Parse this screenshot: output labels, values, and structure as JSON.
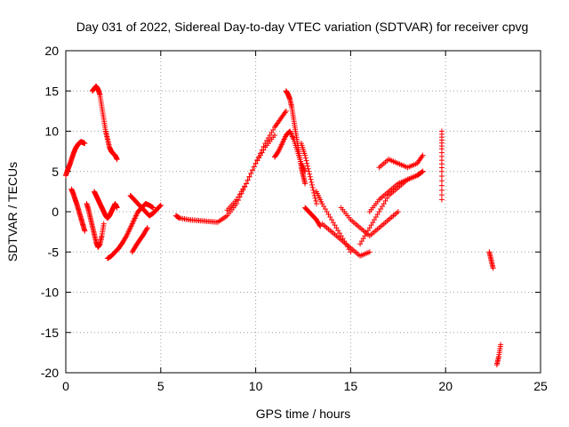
{
  "chart_data": {
    "type": "scatter",
    "title": "Day 031 of 2022, Sidereal Day-to-day VTEC variation (SDTVAR) for receiver cpvg",
    "xlabel": "GPS time / hours",
    "ylabel": "SDTVAR / TECUs",
    "xlim": [
      0,
      25
    ],
    "ylim": [
      -20,
      20
    ],
    "xticks": [
      0,
      5,
      10,
      15,
      20,
      25
    ],
    "yticks": [
      -20,
      -15,
      -10,
      -5,
      0,
      5,
      10,
      15,
      20
    ],
    "xtick_labels": [
      "0",
      "5",
      "10",
      "15",
      "20",
      "25"
    ],
    "ytick_labels": [
      "-20",
      "-15",
      "-10",
      "-5",
      "0",
      "5",
      "10",
      "15",
      "20"
    ],
    "grid": true,
    "marker": "+",
    "color": "#ff0000",
    "series": [
      {
        "name": "s1",
        "x": [
          0.0,
          0.1,
          0.2,
          0.3,
          0.4,
          0.5,
          0.6,
          0.7,
          0.8,
          0.9,
          1.0
        ],
        "y": [
          4.5,
          5.2,
          5.8,
          6.5,
          7.2,
          7.8,
          8.2,
          8.5,
          8.7,
          8.6,
          8.5
        ]
      },
      {
        "name": "s2",
        "x": [
          0.3,
          0.4,
          0.5,
          0.6,
          0.7,
          0.8,
          0.9,
          1.0
        ],
        "y": [
          2.8,
          2.2,
          1.5,
          0.8,
          0.0,
          -0.8,
          -1.6,
          -2.4
        ]
      },
      {
        "name": "s3",
        "x": [
          1.4,
          1.5,
          1.6,
          1.7,
          1.8,
          1.9,
          2.0,
          2.1,
          2.2,
          2.3,
          2.4,
          2.5,
          2.6,
          2.7
        ],
        "y": [
          15.0,
          15.3,
          15.6,
          15.2,
          14.5,
          13.0,
          11.5,
          10.0,
          9.0,
          8.0,
          7.5,
          7.2,
          7.0,
          6.5
        ]
      },
      {
        "name": "s4",
        "x": [
          1.1,
          1.2,
          1.3,
          1.4,
          1.5,
          1.6,
          1.7,
          1.8,
          1.9,
          2.0
        ],
        "y": [
          1.0,
          0.2,
          -0.8,
          -1.8,
          -2.8,
          -3.8,
          -4.4,
          -4.0,
          -3.0,
          -1.5
        ]
      },
      {
        "name": "s5",
        "x": [
          1.5,
          1.6,
          1.7,
          1.8,
          1.9,
          2.0,
          2.1,
          2.2,
          2.3,
          2.4,
          2.5,
          2.6,
          2.7
        ],
        "y": [
          2.5,
          2.0,
          1.5,
          1.0,
          0.5,
          0.0,
          -0.5,
          -0.8,
          -0.5,
          0.0,
          0.5,
          1.0,
          0.5
        ]
      },
      {
        "name": "s6",
        "x": [
          2.2,
          2.4,
          2.6,
          2.8,
          3.0,
          3.2,
          3.4,
          3.6,
          3.8,
          4.0,
          4.2,
          4.4,
          4.6
        ],
        "y": [
          -5.8,
          -5.5,
          -5.0,
          -4.5,
          -3.8,
          -3.0,
          -2.0,
          -1.0,
          0.0,
          0.5,
          1.0,
          0.8,
          0.5
        ]
      },
      {
        "name": "s7",
        "x": [
          3.4,
          3.6,
          3.8,
          4.0,
          4.2,
          4.4,
          4.6,
          4.8,
          5.0
        ],
        "y": [
          2.0,
          1.5,
          1.0,
          0.5,
          0.0,
          -0.5,
          -0.2,
          0.3,
          0.8
        ]
      },
      {
        "name": "s8",
        "x": [
          3.5,
          3.7,
          3.9,
          4.1,
          4.3
        ],
        "y": [
          -5.0,
          -4.2,
          -3.5,
          -2.8,
          -2.0
        ]
      },
      {
        "name": "s9",
        "x": [
          5.8,
          6.0,
          6.5,
          7.0,
          7.5,
          8.0,
          8.5,
          9.0,
          9.5,
          10.0,
          10.5,
          11.0,
          11.3,
          11.6
        ],
        "y": [
          -0.5,
          -0.8,
          -1.0,
          -1.1,
          -1.2,
          -1.3,
          -0.5,
          1.0,
          3.5,
          6.0,
          8.5,
          10.5,
          11.5,
          12.5
        ]
      },
      {
        "name": "s10",
        "x": [
          8.5,
          9.0,
          9.5,
          10.0,
          10.5,
          11.0
        ],
        "y": [
          0.2,
          1.5,
          3.5,
          6.0,
          8.0,
          9.5
        ]
      },
      {
        "name": "s11",
        "x": [
          11.6,
          11.7,
          11.8,
          11.9,
          12.0,
          12.1,
          12.2,
          12.3,
          12.4,
          12.5,
          12.6
        ],
        "y": [
          15.0,
          14.6,
          14.0,
          13.0,
          11.5,
          10.0,
          8.5,
          7.0,
          5.5,
          4.5,
          3.5
        ]
      },
      {
        "name": "s12",
        "x": [
          11.0,
          11.2,
          11.4,
          11.6,
          11.8,
          12.0,
          12.2,
          12.4,
          12.6
        ],
        "y": [
          6.8,
          7.5,
          8.5,
          9.5,
          10.0,
          9.0,
          7.5,
          6.0,
          5.0
        ]
      },
      {
        "name": "s13",
        "x": [
          12.4,
          12.6,
          12.8,
          13.0,
          13.2
        ],
        "y": [
          8.5,
          7.0,
          5.0,
          3.0,
          1.0
        ]
      },
      {
        "name": "s14",
        "x": [
          12.6,
          12.8,
          13.0,
          13.2,
          13.4
        ],
        "y": [
          0.5,
          0.0,
          -0.5,
          -1.0,
          -1.8
        ]
      },
      {
        "name": "s15",
        "x": [
          13.2,
          13.5,
          14.0,
          14.5,
          15.0
        ],
        "y": [
          2.5,
          1.0,
          -1.0,
          -3.0,
          -5.0
        ]
      },
      {
        "name": "s16",
        "x": [
          13.5,
          14.0,
          14.5,
          15.0,
          15.5,
          16.0
        ],
        "y": [
          -1.5,
          -2.5,
          -3.5,
          -4.5,
          -5.5,
          -5.0
        ]
      },
      {
        "name": "s17",
        "x": [
          14.5,
          15.0,
          15.5,
          16.0,
          16.5,
          17.0,
          17.5
        ],
        "y": [
          0.5,
          -1.0,
          -2.0,
          -3.0,
          -2.0,
          -1.0,
          0.0
        ]
      },
      {
        "name": "s18",
        "x": [
          15.5,
          16.0,
          16.5,
          17.0,
          17.5,
          18.0,
          18.5,
          18.8
        ],
        "y": [
          -4.0,
          -2.0,
          0.0,
          2.0,
          3.0,
          4.0,
          4.5,
          5.0
        ]
      },
      {
        "name": "s19",
        "x": [
          16.0,
          16.5,
          17.0,
          17.5,
          18.0,
          18.5,
          18.8
        ],
        "y": [
          0.0,
          1.5,
          2.5,
          3.5,
          4.0,
          4.5,
          5.0
        ]
      },
      {
        "name": "s20",
        "x": [
          16.5,
          17.0,
          17.5,
          18.0,
          18.5,
          18.8
        ],
        "y": [
          5.5,
          6.5,
          6.0,
          5.5,
          6.0,
          7.0
        ]
      },
      {
        "name": "s21",
        "x": [
          19.8,
          19.8,
          19.8,
          19.8
        ],
        "y": [
          10.0,
          7.8,
          5.0,
          1.5
        ]
      },
      {
        "name": "s22",
        "x": [
          22.3,
          22.4,
          22.5
        ],
        "y": [
          -5.0,
          -6.0,
          -7.0
        ]
      },
      {
        "name": "s23",
        "x": [
          22.7,
          22.8,
          22.9
        ],
        "y": [
          -19.0,
          -18.0,
          -16.5
        ]
      }
    ]
  }
}
